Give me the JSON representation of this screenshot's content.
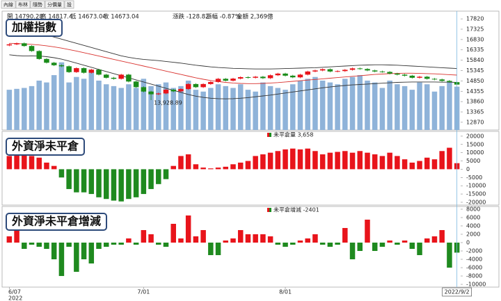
{
  "toolbar": [
    "內線",
    "布林",
    "隨勢",
    "分價量",
    "設"
  ],
  "info": [
    {
      "text": "開 14790.28",
      "color": "#222"
    },
    {
      "text": "高 14817.4",
      "color": "#222"
    },
    {
      "text": "低 14673.04",
      "color": "#222"
    },
    {
      "text": "收 14673.04",
      "color": "#222"
    },
    {
      "text": "漲跌 -128.82",
      "color": "#1a8c1a"
    },
    {
      "text": "漲幅 -0.87%",
      "color": "#1a8c1a"
    },
    {
      "text": "金額 2,369億",
      "color": "#222"
    }
  ],
  "x_axis": {
    "categories": [
      "6/07",
      null,
      null,
      null,
      null,
      null,
      null,
      null,
      null,
      null,
      null,
      null,
      null,
      null,
      null,
      null,
      null,
      null,
      "7/01",
      null,
      null,
      null,
      null,
      null,
      null,
      null,
      null,
      null,
      null,
      null,
      null,
      null,
      null,
      null,
      null,
      null,
      null,
      "8/01",
      null,
      null,
      null,
      null,
      null,
      null,
      null,
      null,
      null,
      null,
      null,
      null,
      null,
      null,
      null,
      null,
      null,
      null,
      null,
      null,
      null,
      null,
      "2022/9/2"
    ],
    "year": "2022"
  },
  "chart_data": [
    {
      "type": "candlestick",
      "title": "加權指數",
      "up_color": "#e8141b",
      "down_color": "#1a8c1a",
      "low_label": "13,928.89",
      "open": [
        16550,
        16600,
        16650,
        16520,
        16280,
        15900,
        15720,
        15600,
        15550,
        15270,
        15460,
        15240,
        15390,
        15150,
        15000,
        14950,
        15150,
        14820,
        14550,
        14340,
        14210,
        14250,
        14430,
        14350,
        14460,
        14700,
        14550,
        14700,
        14800,
        14950,
        14860,
        14960,
        15030,
        15000,
        15050,
        14980,
        15120,
        15200,
        15100,
        15020,
        15150,
        15300,
        15350,
        15410,
        15300,
        15320,
        15380,
        15450,
        15420,
        15350,
        15300,
        15280,
        15200,
        15150,
        15100,
        15000,
        15050,
        14950,
        14920,
        14850,
        14790.28
      ],
      "high": [
        16640,
        16690,
        16690,
        16560,
        16320,
        15940,
        15760,
        15640,
        15590,
        15500,
        15500,
        15430,
        15430,
        15190,
        15040,
        15190,
        15190,
        14860,
        14590,
        14380,
        14290,
        14470,
        14470,
        14500,
        14740,
        14740,
        14740,
        14840,
        14990,
        14990,
        15000,
        15070,
        15070,
        15090,
        15090,
        15160,
        15240,
        15240,
        15140,
        15190,
        15340,
        15390,
        15450,
        15450,
        15360,
        15420,
        15490,
        15490,
        15460,
        15390,
        15340,
        15320,
        15240,
        15190,
        15140,
        15090,
        15090,
        14990,
        14960,
        14890,
        14817.4
      ],
      "low": [
        16510,
        16560,
        16480,
        16240,
        15860,
        15680,
        15560,
        15510,
        15230,
        15230,
        15200,
        15200,
        15110,
        14960,
        14910,
        14910,
        14780,
        14510,
        14300,
        13928.89,
        14170,
        14210,
        14310,
        14310,
        14420,
        14510,
        14510,
        14660,
        14760,
        14820,
        14820,
        14920,
        14960,
        14960,
        14940,
        14940,
        15080,
        15060,
        14980,
        14980,
        15110,
        15260,
        15310,
        15260,
        15260,
        15280,
        15340,
        15380,
        15310,
        15260,
        15240,
        15160,
        15110,
        15060,
        14960,
        14960,
        14910,
        14880,
        14810,
        14760,
        14673.04
      ],
      "close": [
        16600,
        16650,
        16520,
        16280,
        15900,
        15720,
        15600,
        15550,
        15270,
        15460,
        15240,
        15390,
        15150,
        15000,
        14950,
        15150,
        14820,
        14550,
        14340,
        14210,
        14250,
        14430,
        14350,
        14460,
        14700,
        14550,
        14700,
        14800,
        14950,
        14860,
        14960,
        15030,
        15000,
        15050,
        14980,
        15120,
        15200,
        15100,
        15020,
        15150,
        15300,
        15350,
        15410,
        15300,
        15320,
        15380,
        15450,
        15420,
        15350,
        15300,
        15280,
        15200,
        15150,
        15100,
        15000,
        15050,
        14950,
        14920,
        14850,
        14800,
        14673.04
      ],
      "bands": [
        {
          "color": "#333333",
          "values": [
            17200,
            17220,
            17200,
            17150,
            17100,
            17050,
            16950,
            16850,
            16750,
            16650,
            16550,
            16450,
            16350,
            16250,
            16150,
            16050,
            15980,
            15920,
            15880,
            15850,
            15820,
            15780,
            15740,
            15700,
            15650,
            15600,
            15560,
            15520,
            15490,
            15470,
            15450,
            15440,
            15430,
            15420,
            15420,
            15420,
            15430,
            15440,
            15450,
            15460,
            15470,
            15480,
            15500,
            15520,
            15540,
            15560,
            15580,
            15600,
            15610,
            15620,
            15620,
            15610,
            15600,
            15580,
            15560,
            15540,
            15520,
            15500,
            15480,
            15460,
            15440
          ]
        },
        {
          "color": "#d9322e",
          "values": [
            16650,
            16640,
            16620,
            16600,
            16570,
            16530,
            16480,
            16420,
            16350,
            16280,
            16200,
            16120,
            16040,
            15960,
            15880,
            15800,
            15720,
            15640,
            15560,
            15480,
            15400,
            15320,
            15240,
            15160,
            15080,
            15000,
            14930,
            14870,
            14820,
            14780,
            14750,
            14730,
            14720,
            14720,
            14730,
            14750,
            14770,
            14800,
            14830,
            14860,
            14890,
            14920,
            14950,
            14980,
            15010,
            15040,
            15070,
            15100,
            15130,
            15160,
            15180,
            15200,
            15210,
            15220,
            15220,
            15210,
            15200,
            15190,
            15170,
            15150,
            15130
          ]
        },
        {
          "color": "#333333",
          "values": [
            16100,
            16060,
            16040,
            16050,
            16040,
            16010,
            15960,
            15890,
            15800,
            15700,
            15600,
            15500,
            15400,
            15300,
            15200,
            15100,
            15000,
            14900,
            14800,
            14700,
            14600,
            14500,
            14400,
            14300,
            14200,
            14120,
            14060,
            14020,
            14000,
            13990,
            14000,
            14020,
            14050,
            14090,
            14130,
            14170,
            14220,
            14270,
            14320,
            14370,
            14420,
            14470,
            14520,
            14560,
            14600,
            14630,
            14660,
            14680,
            14700,
            14720,
            14740,
            14760,
            14780,
            14790,
            14800,
            14800,
            14800,
            14800,
            14790,
            14790,
            14780
          ]
        }
      ],
      "volume": {
        "color": "#8fb3d9",
        "ylim": [
          0,
          6500
        ],
        "values": [
          2200,
          2250,
          2300,
          2400,
          2700,
          2600,
          3000,
          3700,
          2600,
          2900,
          2800,
          3200,
          2700,
          2500,
          2400,
          2300,
          2500,
          2300,
          2800,
          2400,
          2500,
          2600,
          2300,
          2400,
          2700,
          2200,
          2100,
          2300,
          2500,
          2400,
          2300,
          2500,
          2200,
          2100,
          2600,
          2400,
          2300,
          2200,
          2500,
          2700,
          2800,
          2900,
          2700,
          2600,
          2500,
          2800,
          2900,
          3000,
          2700,
          2600,
          2300,
          2700,
          2500,
          2400,
          2200,
          2600,
          2500,
          2100,
          2400,
          2600,
          2369
        ]
      },
      "ylim": [
        12500,
        18190
      ],
      "yticks": [
        17820,
        17325,
        16830,
        16335,
        15840,
        15345,
        14850,
        14355,
        13860,
        13365,
        12870
      ]
    },
    {
      "type": "bar",
      "title": "外資淨未平倉",
      "legend": "未平倉量 3,658",
      "pos_color": "#e8141b",
      "neg_color": "#1f8a1f",
      "values": [
        8000,
        10000,
        9000,
        8000,
        7000,
        4000,
        2000,
        -5000,
        -12000,
        -14000,
        -14000,
        -15000,
        -17000,
        -18000,
        -19000,
        -19500,
        -18000,
        -17000,
        -15000,
        -12000,
        -9000,
        -6000,
        2000,
        8000,
        9000,
        3000,
        1000,
        500,
        1000,
        1500,
        3000,
        4000,
        5000,
        8000,
        9000,
        10000,
        11000,
        12000,
        12500,
        12000,
        12500,
        11000,
        9000,
        10000,
        10500,
        11000,
        10000,
        11000,
        10000,
        9000,
        8000,
        10000,
        8000,
        6000,
        4000,
        5000,
        7000,
        6000,
        11000,
        13000,
        3658
      ],
      "ylim": [
        -21700,
        22900
      ],
      "yticks": [
        20000,
        15000,
        10000,
        5000,
        0,
        -5000,
        -10000,
        -15000,
        -20000
      ]
    },
    {
      "type": "bar",
      "title": "外資淨未平倉增減",
      "legend": "未平倉增減 -2401",
      "pos_color": "#e8141b",
      "neg_color": "#1f8a1f",
      "values": [
        1500,
        4000,
        -1500,
        -500,
        -1000,
        -1500,
        -4000,
        -8000,
        -1000,
        -7000,
        -4000,
        -5000,
        -1500,
        -1000,
        -500,
        -500,
        1000,
        -500,
        3000,
        2000,
        -500,
        -1000,
        4500,
        1000,
        6500,
        1500,
        3000,
        -3000,
        -3000,
        500,
        1000,
        3000,
        2000,
        2000,
        2000,
        1500,
        -500,
        -1000,
        -500,
        500,
        1000,
        2000,
        -500,
        -1000,
        -500,
        3500,
        -4000,
        -2000,
        5500,
        -2000,
        -1000,
        500,
        -500,
        500,
        -1500,
        -3000,
        1000,
        1500,
        3000,
        -6000,
        -2401
      ],
      "ylim": [
        -10660,
        8660
      ],
      "yticks": [
        8000,
        6000,
        4000,
        2000,
        0,
        -2000,
        -4000,
        -6000,
        -8000,
        -10000
      ]
    }
  ]
}
